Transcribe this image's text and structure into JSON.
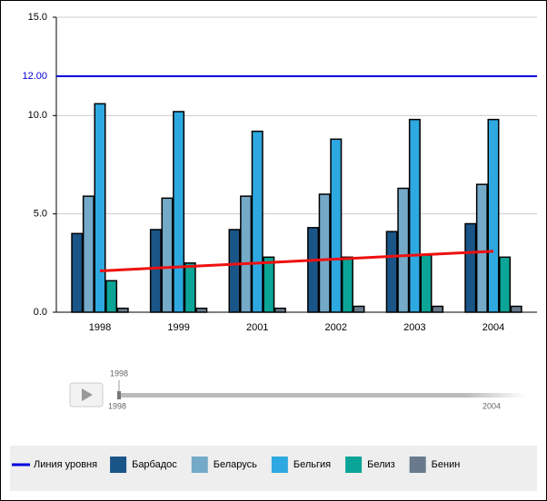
{
  "chart_data": {
    "type": "bar",
    "categories": [
      "1998",
      "1999",
      "2001",
      "2002",
      "2003",
      "2004"
    ],
    "series": [
      {
        "name": "Барбадос",
        "color": "#1a5588",
        "values": [
          4.0,
          4.2,
          4.2,
          4.3,
          4.1,
          4.5
        ]
      },
      {
        "name": "Беларусь",
        "color": "#74a9c7",
        "values": [
          5.9,
          5.8,
          5.9,
          6.0,
          6.3,
          6.5
        ]
      },
      {
        "name": "Бельгия",
        "color": "#2ea8e0",
        "values": [
          10.6,
          10.2,
          9.2,
          8.8,
          9.8,
          9.8
        ]
      },
      {
        "name": "Белиз",
        "color": "#0aa597",
        "values": [
          1.6,
          2.5,
          2.8,
          2.8,
          2.9,
          2.8
        ]
      },
      {
        "name": "Бенин",
        "color": "#687a8c",
        "values": [
          0.2,
          0.2,
          0.2,
          0.3,
          0.3,
          0.3
        ]
      }
    ],
    "trend": {
      "color": "#ee1111",
      "values": [
        2.1,
        2.3,
        2.5,
        2.7,
        2.9,
        3.1
      ]
    },
    "level_line": {
      "name": "Линия уровня",
      "value": 12,
      "label": "12.00",
      "color": "#0000dd"
    },
    "ylim": [
      0,
      15
    ],
    "yticks": [
      {
        "value": 0,
        "label": "0.0"
      },
      {
        "value": 5,
        "label": "5.0"
      },
      {
        "value": 10,
        "label": "10.0"
      },
      {
        "value": 15,
        "label": "15.0"
      }
    ],
    "grid": true,
    "legend": "bottom",
    "timeline": {
      "current": "1998",
      "start": "1998",
      "end": "2004"
    }
  }
}
